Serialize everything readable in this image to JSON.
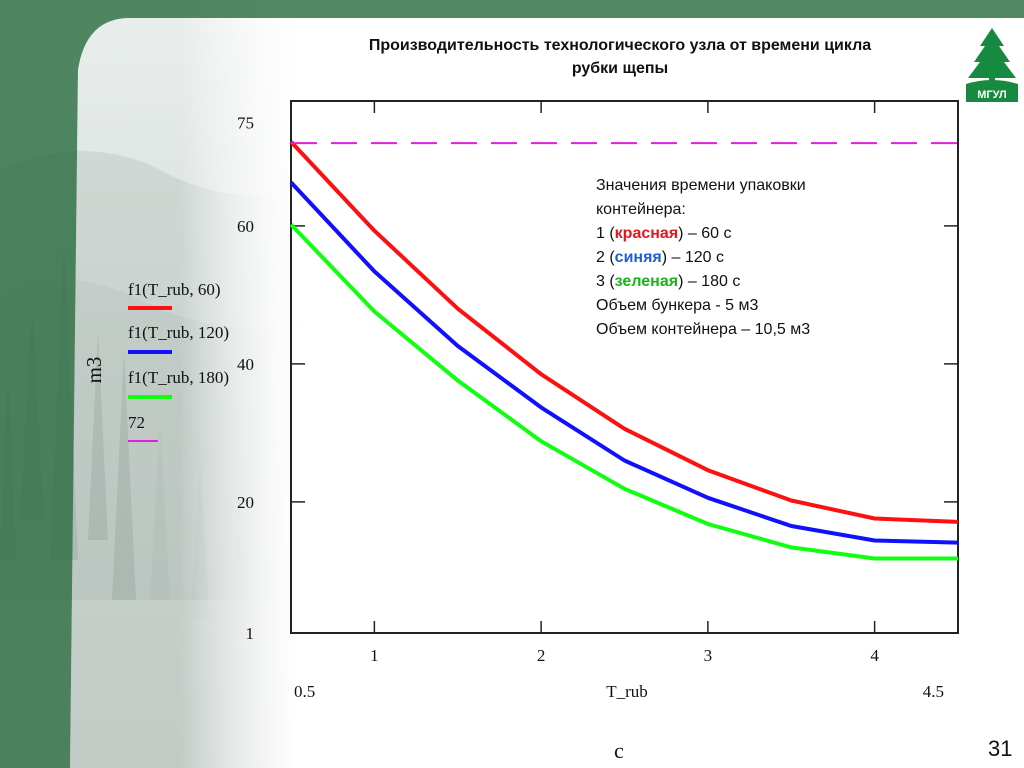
{
  "slide": {
    "title_line1": "Производительность технологического узла от времени цикла",
    "title_line2": "рубки щепы",
    "slide_number": "31",
    "logo_text": "МГУЛ",
    "header_color": "#3e7a52",
    "logo_color": "#168a3e"
  },
  "annotation": {
    "line1": "Значения времени упаковки",
    "line2": "контейнера:",
    "item1_prefix": "1 (",
    "item1_color": "красная",
    "item1_suffix": ") – 60 с",
    "item2_prefix": "2 (",
    "item2_color": "синяя",
    "item2_suffix": ") – 120 с",
    "item3_prefix": "3 (",
    "item3_color": "зеленая",
    "item3_suffix": ") – 180 с",
    "bunker": "Объем бункера - 5 м3",
    "container": "Объем контейнера – 10,5 м3"
  },
  "chart_data": {
    "type": "line",
    "xlabel": "T_rub",
    "ylabel": "m3",
    "x_unit": "c",
    "xlim": [
      0.5,
      4.5
    ],
    "ylim": [
      1,
      75
    ],
    "xlim_labels": [
      "0.5",
      "4.5"
    ],
    "x_ticks": [
      1,
      2,
      3,
      4
    ],
    "x_tick_labels": [
      "1",
      "2",
      "3",
      "4"
    ],
    "y_tick_labels": [
      {
        "value": 75,
        "label": "75"
      },
      {
        "value": 60,
        "label": "60"
      },
      {
        "value": 40,
        "label": "40"
      },
      {
        "value": 20,
        "label": "20"
      },
      {
        "value": 1,
        "label": "1"
      }
    ],
    "x": [
      0.5,
      1,
      1.5,
      2,
      2.5,
      3,
      3.5,
      4,
      4.5
    ],
    "series": [
      {
        "name": "f1(T_rub, 60)",
        "color": "#ff1010",
        "values": [
          72.2,
          59.3,
          48.0,
          38.5,
          30.6,
          24.6,
          20.2,
          17.6,
          17.1
        ]
      },
      {
        "name": "f1(T_rub, 120)",
        "color": "#1010ff",
        "values": [
          66.3,
          53.4,
          42.6,
          33.7,
          26.0,
          20.6,
          16.5,
          14.4,
          14.1
        ]
      },
      {
        "name": "f1(T_rub, 180)",
        "color": "#10ff10",
        "values": [
          60.2,
          47.6,
          37.6,
          28.8,
          21.9,
          16.8,
          13.4,
          11.8,
          11.8
        ]
      },
      {
        "name": "72",
        "color": "#e020e0",
        "dashed": true,
        "values": [
          72,
          72,
          72,
          72,
          72,
          72,
          72,
          72,
          72
        ]
      }
    ]
  }
}
